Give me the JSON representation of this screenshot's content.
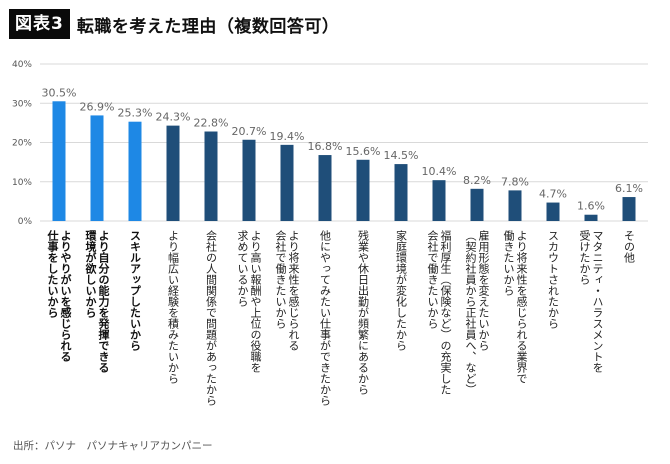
{
  "header": {
    "badge": "図表3",
    "title": "転職を考えた理由（複数回答可）"
  },
  "source": "出所：パソナ　パソナキャリアカンパニー",
  "colors": {
    "highlight": "#1e88e5",
    "normal": "#1f4e79",
    "grid": "#d9d9d9"
  },
  "chart_data": {
    "type": "bar",
    "title": "転職を考えた理由（複数回答可）",
    "xlabel": "",
    "ylabel": "",
    "ylim": [
      0,
      40
    ],
    "yticks": [
      0,
      10,
      20,
      30,
      40
    ],
    "ytick_labels": [
      "0%",
      "10%",
      "20%",
      "30%",
      "40%"
    ],
    "grid": true,
    "legend": "none",
    "categories": [
      [
        "よりやりがいを感じられる",
        "仕事をしたいから"
      ],
      [
        "より自分の能力を発揮できる",
        "環境が欲しいから"
      ],
      [
        "スキルアップしたいから"
      ],
      [
        "より幅広い経験を積みたいから"
      ],
      [
        "会社の人間関係で問題があったから"
      ],
      [
        "より高い報酬や上位の役職を",
        "求めているから"
      ],
      [
        "より将来性を感じられる",
        "会社で働きたいから"
      ],
      [
        "他にやってみたい仕事ができたから"
      ],
      [
        "残業や休日出勤が頻繁にあるから"
      ],
      [
        "家庭環境が変化したから"
      ],
      [
        "福利厚生（保険など）の充実した",
        "会社で働きたいから"
      ],
      [
        "雇用形態を変えたいから",
        "（契約社員から正社員へ、など）"
      ],
      [
        "より将来性を感じられる業界で",
        "働きたいから"
      ],
      [
        "スカウトされたから"
      ],
      [
        "マタニティ・ハラスメントを",
        "受けたから"
      ],
      [
        "その他"
      ]
    ],
    "values": [
      30.5,
      26.9,
      25.3,
      24.3,
      22.8,
      20.7,
      19.4,
      16.8,
      15.6,
      14.5,
      10.4,
      8.2,
      7.8,
      4.7,
      1.6,
      6.1
    ],
    "value_labels": [
      "30.5%",
      "26.9%",
      "25.3%",
      "24.3%",
      "22.8%",
      "20.7%",
      "19.4%",
      "16.8%",
      "15.6%",
      "14.5%",
      "10.4%",
      "8.2%",
      "7.8%",
      "4.7%",
      "1.6%",
      "6.1%"
    ],
    "highlighted": [
      true,
      true,
      true,
      false,
      false,
      false,
      false,
      false,
      false,
      false,
      false,
      false,
      false,
      false,
      false,
      false
    ],
    "unit": "%"
  }
}
